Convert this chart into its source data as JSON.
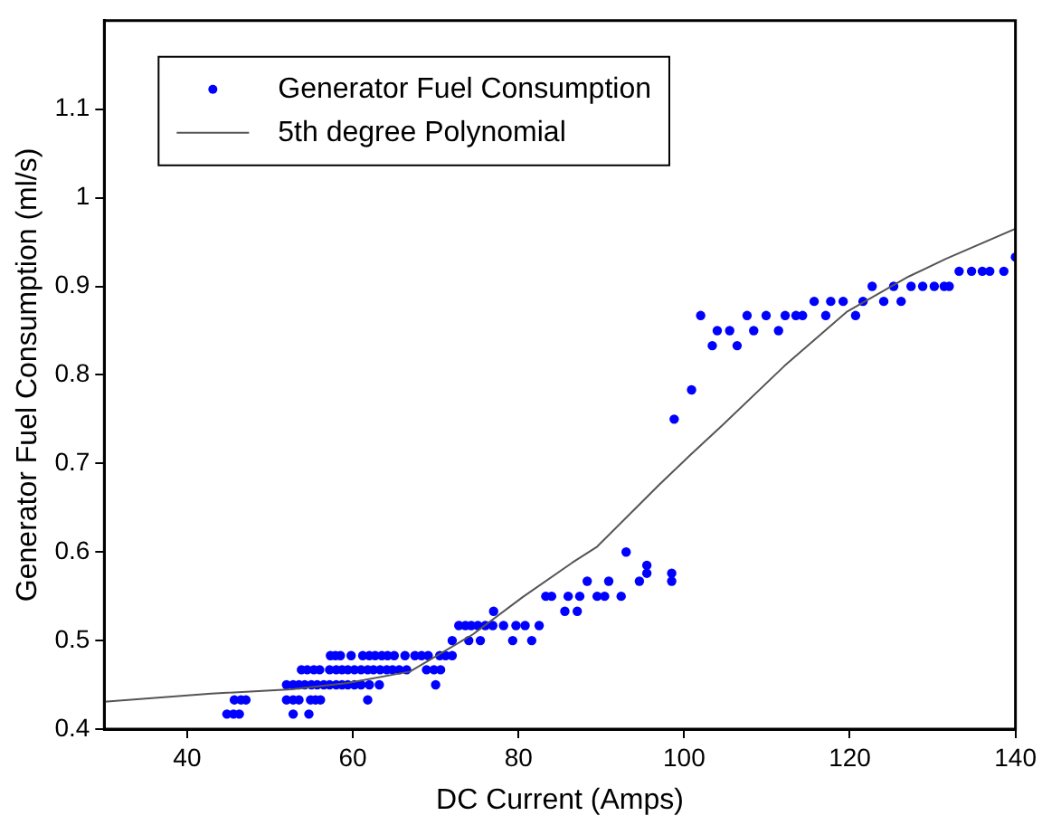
{
  "chart_data": {
    "type": "scatter",
    "xlabel": "DC Current (Amps)",
    "ylabel": "Generator Fuel Consumption (ml/s)",
    "xlim": [
      30,
      140
    ],
    "xticks": [
      40,
      60,
      80,
      100,
      120,
      140
    ],
    "ylim": [
      0.4,
      1.2
    ],
    "yticks": [
      0.4,
      0.5,
      0.6,
      0.7,
      0.8,
      0.9,
      1,
      1.1
    ],
    "grid": false,
    "legend": "top left",
    "marker": "circle",
    "series": [
      {
        "name": "Generator Fuel Consumption",
        "color": "#0000ff",
        "x": [
          44.8,
          45.6,
          46.3,
          52.8,
          54.7,
          45.7,
          46.5,
          47.1,
          52.0,
          52.8,
          53.5,
          54.9,
          55.5,
          56.1,
          61.8,
          52.0,
          52.8,
          53.5,
          54.2,
          55.0,
          55.7,
          56.5,
          57.2,
          58.0,
          58.7,
          59.4,
          60.2,
          61.0,
          62.0,
          63.2,
          70.0,
          53.8,
          54.5,
          55.3,
          56.0,
          57.2,
          58.0,
          58.7,
          59.4,
          60.2,
          61.0,
          61.8,
          62.5,
          63.3,
          64.1,
          64.8,
          65.6,
          66.5,
          68.9,
          69.8,
          70.6,
          57.3,
          57.9,
          58.5,
          59.8,
          61.2,
          62.0,
          62.7,
          63.5,
          64.2,
          65.0,
          66.3,
          67.5,
          68.3,
          69.1,
          70.5,
          71.2,
          72.0,
          72.0,
          74.0,
          75.4,
          79.3,
          81.6,
          72.8,
          73.6,
          74.3,
          75.1,
          76.0,
          76.9,
          78.2,
          79.7,
          80.8,
          82.5,
          77.0,
          83.3,
          84.0,
          86.0,
          87.4,
          89.5,
          90.4,
          92.4,
          85.6,
          87.1,
          88.3,
          90.9,
          94.6,
          98.5,
          95.5,
          98.5,
          95.5,
          93.0,
          98.8,
          100.9,
          103.4,
          106.4,
          104.0,
          105.5,
          108.4,
          111.4,
          102.0,
          107.6,
          109.9,
          112.2,
          113.5,
          114.3,
          117.1,
          120.7,
          115.7,
          117.7,
          119.2,
          121.6,
          124.1,
          126.2,
          122.7,
          125.3,
          127.4,
          128.8,
          130.2,
          131.4,
          132.0,
          133.2,
          134.7,
          136.0,
          136.9,
          138.6,
          140
        ],
        "values": [
          0.417,
          0.417,
          0.417,
          0.417,
          0.417,
          0.433,
          0.433,
          0.433,
          0.433,
          0.433,
          0.433,
          0.433,
          0.433,
          0.433,
          0.433,
          0.45,
          0.45,
          0.45,
          0.45,
          0.45,
          0.45,
          0.45,
          0.45,
          0.45,
          0.45,
          0.45,
          0.45,
          0.45,
          0.45,
          0.45,
          0.45,
          0.467,
          0.467,
          0.467,
          0.467,
          0.467,
          0.467,
          0.467,
          0.467,
          0.467,
          0.467,
          0.467,
          0.467,
          0.467,
          0.467,
          0.467,
          0.467,
          0.467,
          0.467,
          0.467,
          0.467,
          0.483,
          0.483,
          0.483,
          0.483,
          0.483,
          0.483,
          0.483,
          0.483,
          0.483,
          0.483,
          0.483,
          0.483,
          0.483,
          0.483,
          0.483,
          0.483,
          0.483,
          0.5,
          0.5,
          0.5,
          0.5,
          0.5,
          0.517,
          0.517,
          0.517,
          0.517,
          0.517,
          0.517,
          0.517,
          0.517,
          0.517,
          0.517,
          0.533,
          0.55,
          0.55,
          0.55,
          0.55,
          0.55,
          0.55,
          0.55,
          0.533,
          0.533,
          0.567,
          0.567,
          0.567,
          0.567,
          0.576,
          0.576,
          0.585,
          0.6,
          0.75,
          0.783,
          0.833,
          0.833,
          0.85,
          0.85,
          0.85,
          0.85,
          0.867,
          0.867,
          0.867,
          0.867,
          0.867,
          0.867,
          0.867,
          0.867,
          0.883,
          0.883,
          0.883,
          0.883,
          0.883,
          0.883,
          0.9,
          0.9,
          0.9,
          0.9,
          0.9,
          0.9,
          0.9,
          0.917,
          0.917,
          0.917,
          0.917,
          0.917,
          0.933
        ]
      },
      {
        "name": "5th degree Polynomial",
        "type": "line",
        "color": "#555555",
        "marker": "none",
        "line_style": "solid",
        "x": [
          30,
          42.9,
          52.6,
          59.4,
          66.9,
          74.5,
          80.5,
          86.5,
          89.5,
          97,
          100.8,
          104.6,
          112.1,
          119.6,
          127.1,
          131.6,
          140
        ],
        "values": [
          0.431,
          0.44,
          0.445,
          0.452,
          0.465,
          0.507,
          0.549,
          0.588,
          0.606,
          0.676,
          0.71,
          0.743,
          0.81,
          0.871,
          0.911,
          0.931,
          0.965
        ]
      }
    ]
  }
}
